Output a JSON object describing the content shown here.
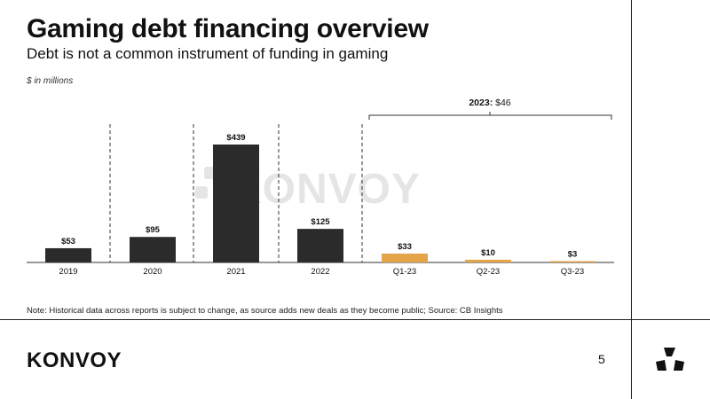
{
  "slide": {
    "title": "Gaming debt financing overview",
    "subtitle": "Debt is not a common instrument of funding in gaming",
    "unit_note": "$ in millions",
    "footnote": "Note: Historical data across reports is subject to change, as source adds new deals as they become public; Source: CB Insights",
    "brand": "KONVOY",
    "watermark": "KONVOY",
    "page_number": "5"
  },
  "colors": {
    "annual_bar": "#2b2b2b",
    "quarterly_bar": "#e3a44a",
    "text": "#111111",
    "divider": "#222222"
  },
  "chart_data": {
    "type": "bar",
    "categories": [
      "2019",
      "2020",
      "2021",
      "2022",
      "Q1-23",
      "Q2-23",
      "Q3-23"
    ],
    "values": [
      53,
      95,
      439,
      125,
      33,
      10,
      3
    ],
    "data_labels": [
      "$53",
      "$95",
      "$439",
      "$125",
      "$33",
      "$10",
      "$3"
    ],
    "bar_colors": [
      "#2b2b2b",
      "#2b2b2b",
      "#2b2b2b",
      "#2b2b2b",
      "#e3a44a",
      "#e3a44a",
      "#e3a44a"
    ],
    "ylim": [
      0,
      439
    ],
    "grid": false,
    "bracket": {
      "label_bold": "2023:",
      "label_value": "$46",
      "spans": [
        "Q1-23",
        "Q3-23"
      ]
    }
  }
}
